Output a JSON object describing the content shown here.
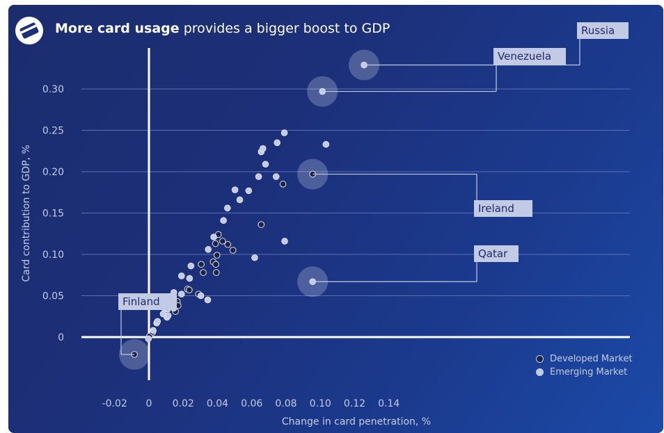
{
  "header": {
    "title_bold": "More card usage",
    "title_rest": " provides a bigger boost to GDP",
    "logo_icon": "credit-card-icon"
  },
  "chart_data": {
    "type": "scatter",
    "title": "More card usage provides a bigger boost to GDP",
    "xlabel": "Change in card penetration, %",
    "ylabel": "Card contribution to GDP, %",
    "xlim": [
      -0.02,
      0.14
    ],
    "ylim": [
      -0.05,
      0.35
    ],
    "x_ticks": [
      "-0.02",
      "0",
      "0.02",
      "0.04",
      "0.06",
      "0.08",
      "0.10",
      "0.12",
      "0.14"
    ],
    "x_tick_values": [
      -0.02,
      0,
      0.02,
      0.04,
      0.06,
      0.08,
      0.1,
      0.12,
      0.14
    ],
    "y_ticks": [
      "0",
      "0.05",
      "0.10",
      "0.15",
      "0.20",
      "0.25",
      "0.30"
    ],
    "y_tick_values": [
      0,
      0.05,
      0.1,
      0.15,
      0.2,
      0.25,
      0.3
    ],
    "grid": "horizontal",
    "legend_position": "bottom-right",
    "colors": {
      "background": "#1c2f78",
      "developed": "#1d2240",
      "emerging": "#c3cbe4",
      "grid": "#5a6fb4",
      "label_box": "#c3cbe4",
      "label_text": "#1d2a6b"
    },
    "series": [
      {
        "name": "Developed Market",
        "points": [
          [
            -0.0085,
            -0.021
          ],
          [
            0.0003,
            0.001
          ],
          [
            0.0022,
            0.006
          ],
          [
            0.0155,
            0.031
          ],
          [
            0.0165,
            0.043
          ],
          [
            0.017,
            0.038
          ],
          [
            0.0225,
            0.058
          ],
          [
            0.0235,
            0.057
          ],
          [
            0.029,
            0.052
          ],
          [
            0.0305,
            0.088
          ],
          [
            0.0317,
            0.078
          ],
          [
            0.0375,
            0.091
          ],
          [
            0.0388,
            0.113
          ],
          [
            0.039,
            0.088
          ],
          [
            0.0393,
            0.078
          ],
          [
            0.0397,
            0.099
          ],
          [
            0.0405,
            0.124
          ],
          [
            0.043,
            0.116
          ],
          [
            0.046,
            0.112
          ],
          [
            0.049,
            0.105
          ],
          [
            0.0655,
            0.136
          ],
          [
            0.0782,
            0.185
          ],
          [
            0.0955,
            0.197
          ]
        ]
      },
      {
        "name": "Emerging Market",
        "points": [
          [
            -0.0003,
            -0.002
          ],
          [
            0.0025,
            0.008
          ],
          [
            0.0045,
            0.017
          ],
          [
            0.005,
            0.019
          ],
          [
            0.0083,
            0.028
          ],
          [
            0.0093,
            0.034
          ],
          [
            0.011,
            0.034
          ],
          [
            0.0105,
            0.024
          ],
          [
            0.0112,
            0.026
          ],
          [
            0.0117,
            0.046
          ],
          [
            0.013,
            0.037
          ],
          [
            0.0145,
            0.044
          ],
          [
            0.0145,
            0.054
          ],
          [
            0.0145,
            0.035
          ],
          [
            0.019,
            0.052
          ],
          [
            0.019,
            0.074
          ],
          [
            0.0245,
            0.086
          ],
          [
            0.0237,
            0.071
          ],
          [
            0.0303,
            0.05
          ],
          [
            0.0343,
            0.045
          ],
          [
            0.0346,
            0.106
          ],
          [
            0.0378,
            0.121
          ],
          [
            0.0435,
            0.141
          ],
          [
            0.0458,
            0.156
          ],
          [
            0.0502,
            0.178
          ],
          [
            0.053,
            0.166
          ],
          [
            0.0582,
            0.177
          ],
          [
            0.0617,
            0.096
          ],
          [
            0.064,
            0.194
          ],
          [
            0.0655,
            0.224
          ],
          [
            0.0665,
            0.228
          ],
          [
            0.068,
            0.209
          ],
          [
            0.0742,
            0.194
          ],
          [
            0.0748,
            0.235
          ],
          [
            0.079,
            0.247
          ],
          [
            0.0792,
            0.116
          ],
          [
            0.0955,
            0.067
          ],
          [
            0.1012,
            0.297
          ],
          [
            0.1033,
            0.233
          ],
          [
            0.1255,
            0.329
          ]
        ]
      }
    ],
    "annotations": [
      {
        "label": "Russia",
        "x": 0.1255,
        "y": 0.329
      },
      {
        "label": "Venezuela",
        "x": 0.1012,
        "y": 0.297
      },
      {
        "label": "Ireland",
        "x": 0.0955,
        "y": 0.197
      },
      {
        "label": "Qatar",
        "x": 0.0955,
        "y": 0.067
      },
      {
        "label": "Finland",
        "x": -0.0085,
        "y": -0.021
      }
    ]
  }
}
